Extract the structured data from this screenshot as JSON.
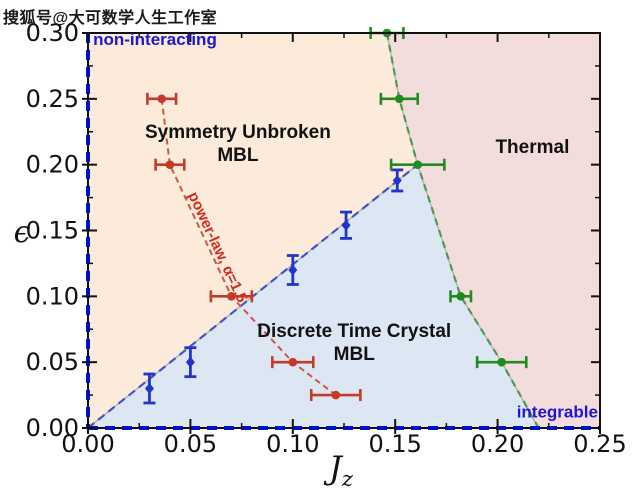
{
  "watermark": "搜狐号@大可数学人生工作室",
  "chart_data": {
    "type": "scatter",
    "xlabel_main": "J",
    "xlabel_sub": "z",
    "ylabel": "ϵ",
    "xlim": [
      0,
      0.25
    ],
    "ylim": [
      0,
      0.3
    ],
    "grid": false,
    "legend": "none",
    "colors": {
      "frame": "#111111",
      "tick_label": "#111111",
      "axis_dash": "#0013c2",
      "region_edge": "#b0b0b0",
      "red": "#c43a28",
      "red_line": "#d05545",
      "blue": "#2335c8",
      "blue_boundary": "#4553c0",
      "green": "#1f8b22",
      "green_line": "#4d9a4d",
      "label_blue": "#1f17cf"
    },
    "x_ticks": [
      {
        "v": 0.0,
        "label": "0.00"
      },
      {
        "v": 0.05,
        "label": "0.05"
      },
      {
        "v": 0.1,
        "label": "0.10"
      },
      {
        "v": 0.15,
        "label": "0.15"
      },
      {
        "v": 0.2,
        "label": "0.20"
      },
      {
        "v": 0.25,
        "label": "0.25"
      }
    ],
    "y_ticks": [
      {
        "v": 0.0,
        "label": "0.00"
      },
      {
        "v": 0.05,
        "label": "0.05"
      },
      {
        "v": 0.1,
        "label": "0.10"
      },
      {
        "v": 0.15,
        "label": "0.15"
      },
      {
        "v": 0.2,
        "label": "0.20"
      },
      {
        "v": 0.25,
        "label": "0.25"
      },
      {
        "v": 0.3,
        "label": "0.30"
      }
    ],
    "x_minor": [
      0.025,
      0.075,
      0.125,
      0.175,
      0.225
    ],
    "y_minor": [
      0.025,
      0.075,
      0.125,
      0.175,
      0.225,
      0.275
    ],
    "regions": [
      {
        "name": "symmetry-unbroken-mbl",
        "fill": "#fceadb",
        "points": [
          [
            0,
            0
          ],
          [
            0.161,
            0.2
          ],
          [
            0.152,
            0.25
          ],
          [
            0.146,
            0.3
          ],
          [
            0,
            0.3
          ]
        ]
      },
      {
        "name": "discrete-time-crystal-mbl",
        "fill": "#dde7f4",
        "points": [
          [
            0,
            0
          ],
          [
            0.161,
            0.2
          ],
          [
            0.182,
            0.1
          ],
          [
            0.202,
            0.05
          ],
          [
            0.22,
            0
          ]
        ]
      },
      {
        "name": "thermal",
        "fill": "#f3dddc",
        "points": [
          [
            0.146,
            0.3
          ],
          [
            0.152,
            0.25
          ],
          [
            0.161,
            0.2
          ],
          [
            0.182,
            0.1
          ],
          [
            0.202,
            0.05
          ],
          [
            0.22,
            0
          ],
          [
            0.25,
            0
          ],
          [
            0.25,
            0.3
          ]
        ]
      }
    ],
    "boundaries": [
      {
        "name": "dtc-mbl-boundary",
        "color": "#4553c0",
        "width": 2.2,
        "dash": "8 5",
        "points": [
          [
            0,
            0
          ],
          [
            0.161,
            0.2
          ]
        ]
      },
      {
        "name": "thermal-boundary",
        "color": "#4d9a4d",
        "width": 2.2,
        "dash": "7 5",
        "points": [
          [
            0.146,
            0.3
          ],
          [
            0.152,
            0.25
          ],
          [
            0.161,
            0.2
          ],
          [
            0.182,
            0.1
          ],
          [
            0.202,
            0.05
          ],
          [
            0.22,
            0
          ]
        ]
      }
    ],
    "series": [
      {
        "name": "symmetry-breaking-line",
        "color": "#c43a28",
        "line_color": "#d05545",
        "marker": "circle",
        "line_dashed": true,
        "error": "x",
        "points": [
          {
            "x": 0.036,
            "y": 0.25,
            "xerr": 0.007
          },
          {
            "x": 0.04,
            "y": 0.2,
            "xerr": 0.007
          },
          {
            "x": 0.07,
            "y": 0.1,
            "xerr": 0.01
          },
          {
            "x": 0.1,
            "y": 0.05,
            "xerr": 0.01
          },
          {
            "x": 0.121,
            "y": 0.025,
            "xerr": 0.012
          }
        ]
      },
      {
        "name": "dtc-transition-points",
        "color": "#2335c8",
        "marker": "diamond",
        "line_dashed": false,
        "error": "y",
        "points": [
          {
            "x": 0.03,
            "y": 0.03,
            "yerr": 0.011
          },
          {
            "x": 0.05,
            "y": 0.05,
            "yerr": 0.011
          },
          {
            "x": 0.1,
            "y": 0.12,
            "yerr": 0.011
          },
          {
            "x": 0.126,
            "y": 0.154,
            "yerr": 0.01
          },
          {
            "x": 0.151,
            "y": 0.188,
            "yerr": 0.008
          }
        ]
      },
      {
        "name": "thermal-transition-points",
        "color": "#1f8b22",
        "marker": "circle",
        "line_dashed": false,
        "error": "x",
        "points": [
          {
            "x": 0.146,
            "y": 0.3,
            "xerr": 0.008
          },
          {
            "x": 0.152,
            "y": 0.25,
            "xerr": 0.009
          },
          {
            "x": 0.161,
            "y": 0.2,
            "xerr": 0.013
          },
          {
            "x": 0.182,
            "y": 0.1,
            "xerr": 0.005
          },
          {
            "x": 0.202,
            "y": 0.05,
            "xerr": 0.012
          }
        ]
      }
    ],
    "annotations": [
      {
        "name": "non-interacting",
        "text": "non-interacting",
        "x": 0.0025,
        "y": 0.2955,
        "color": "#1f17cf",
        "size": 17,
        "anchor": "start",
        "rotation": 0
      },
      {
        "name": "symmetry-unbroken-mbl",
        "text": "Symmetry Unbroken\nMBL",
        "x": 0.0732,
        "y": 0.2165,
        "color": "#121212",
        "size": 19,
        "anchor": "middle",
        "rotation": 0
      },
      {
        "name": "thermal",
        "text": "Thermal",
        "x": 0.217,
        "y": 0.214,
        "color": "#121212",
        "size": 19,
        "anchor": "middle",
        "rotation": 0
      },
      {
        "name": "discrete-time-crystal-mbl",
        "text": "Discrete Time Crystal\nMBL",
        "x": 0.13,
        "y": 0.0655,
        "color": "#121212",
        "size": 19,
        "anchor": "middle",
        "rotation": 0
      },
      {
        "name": "integrable",
        "text": "integrable",
        "x": 0.249,
        "y": 0.0125,
        "color": "#1f17cf",
        "size": 17,
        "anchor": "end",
        "rotation": 0
      },
      {
        "name": "power-law",
        "text": "power-law, α=1.5",
        "x": 0.0635,
        "y": 0.1375,
        "color": "#cf2d1e",
        "size": 15,
        "anchor": "middle",
        "rotation": 65
      }
    ]
  }
}
